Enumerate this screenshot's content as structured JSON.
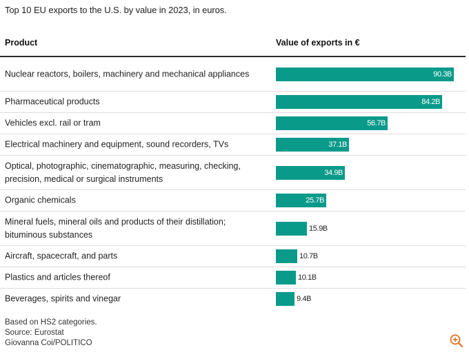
{
  "title": "Top 10 EU exports to the U.S. by value in 2023, in euros.",
  "headers": {
    "product": "Product",
    "value": "Value of exports in €"
  },
  "chart_data": {
    "type": "bar",
    "orientation": "horizontal",
    "title": "Top 10 EU exports to the U.S. by value in 2023, in euros.",
    "xlabel": "Value of exports in €",
    "ylabel": "Product",
    "unit": "B",
    "xlim": [
      0,
      90.3
    ],
    "categories": [
      "Nuclear reactors, boilers, machinery and mechanical appliances",
      "Pharmaceutical products",
      "Vehicles excl. rail or tram",
      "Electrical machinery and equipment, sound recorders, TVs",
      "Optical, photographic, cinematographic, measuring, checking, precision, medical or surgical instruments",
      "Organic chemicals",
      "Mineral fuels, mineral oils and products of their distillation; bituminous substances",
      "Aircraft, spacecraft, and parts",
      "Plastics and articles thereof",
      "Beverages, spirits and vinegar"
    ],
    "values": [
      90.3,
      84.2,
      56.7,
      37.1,
      34.9,
      25.7,
      15.9,
      10.7,
      10.1,
      9.4
    ],
    "labels": [
      "90.3B",
      "84.2B",
      "56.7B",
      "37.1B",
      "34.9B",
      "25.7B",
      "15.9B",
      "10.7B",
      "10.1B",
      "9.4B"
    ],
    "bar_color": "#0a9a8a"
  },
  "footer": {
    "note": "Based on HS2 categories.",
    "source": "Source: Eurostat",
    "credit": "Giovanna Coi/POLITICO"
  },
  "icons": {
    "zoom": "zoom-in-icon"
  }
}
